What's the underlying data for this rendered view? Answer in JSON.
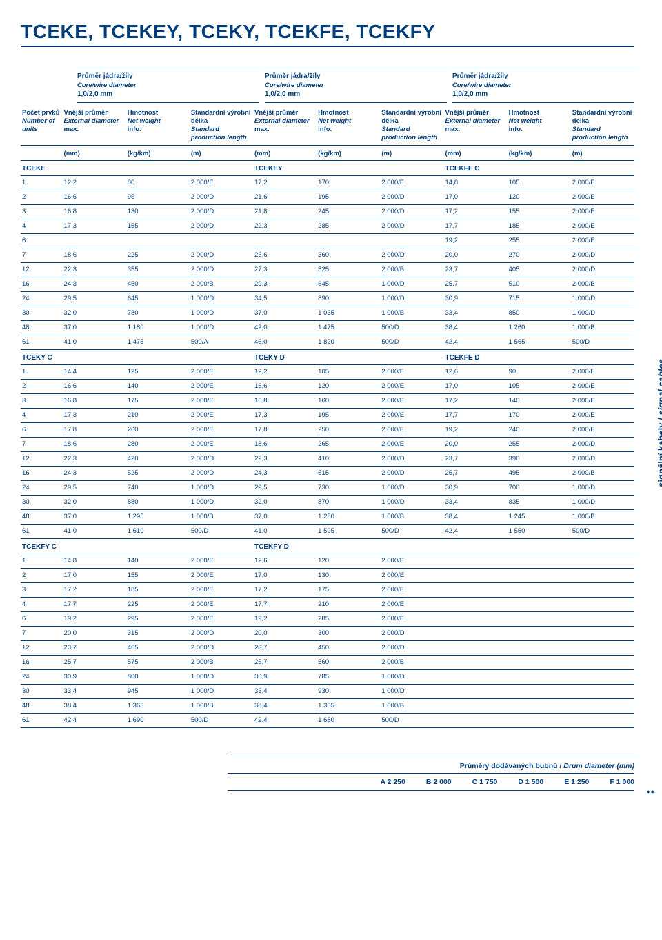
{
  "title": "TCEKE, TCEKEY, TCEKY, TCEKFE, TCEKFY",
  "side_label_cz": "signální kabely",
  "side_label_en": "signal cables",
  "top_header": {
    "line1": "Průměr jádra/žíly",
    "line2": "Core/wire diameter",
    "line3": "1,0/2,0 mm"
  },
  "col_headers": {
    "c0": {
      "cz": "Počet prvků",
      "en": "Number of units",
      "sub": ""
    },
    "c1": {
      "cz": "Vnější průměr",
      "en": "External diameter",
      "sub": "max."
    },
    "c2": {
      "cz": "Hmotnost",
      "en": "Net weight",
      "sub": "info."
    },
    "c3": {
      "cz": "Standardní výrobní délka",
      "en": "Standard production length",
      "sub": ""
    },
    "c4": {
      "cz": "Vnější průměr",
      "en": "External diameter",
      "sub": "max."
    },
    "c5": {
      "cz": "Hmotnost",
      "en": "Net weight",
      "sub": "info."
    },
    "c6": {
      "cz": "Standardní výrobní délka",
      "en": "Standard production length",
      "sub": ""
    },
    "c7": {
      "cz": "Vnější průměr",
      "en": "External diameter",
      "sub": "max."
    },
    "c8": {
      "cz": "Hmotnost",
      "en": "Net weight",
      "sub": "info."
    },
    "c9": {
      "cz": "Standardní výrobní délka",
      "en": "Standard production length",
      "sub": ""
    }
  },
  "units": [
    "(mm)",
    "(kg/km)",
    "(m)",
    "(mm)",
    "(kg/km)",
    "(m)",
    "(mm)",
    "(kg/km)",
    "(m)"
  ],
  "sections": [
    {
      "labels": [
        "TCEKE",
        "TCEKEY",
        "TCEKFE C"
      ],
      "rows": [
        [
          "1",
          "12,2",
          "80",
          "2 000/E",
          "17,2",
          "170",
          "2 000/E",
          "14,8",
          "105",
          "2 000/E"
        ],
        [
          "2",
          "16,6",
          "95",
          "2 000/D",
          "21,6",
          "195",
          "2 000/D",
          "17,0",
          "120",
          "2 000/E"
        ],
        [
          "3",
          "16,8",
          "130",
          "2 000/D",
          "21,8",
          "245",
          "2 000/D",
          "17,2",
          "155",
          "2 000/E"
        ],
        [
          "4",
          "17,3",
          "155",
          "2 000/D",
          "22,3",
          "285",
          "2 000/D",
          "17,7",
          "185",
          "2 000/E"
        ],
        [
          "6",
          "",
          "",
          "",
          "",
          "",
          "",
          "19,2",
          "255",
          "2 000/E"
        ],
        [
          "7",
          "18,6",
          "225",
          "2 000/D",
          "23,6",
          "360",
          "2 000/D",
          "20,0",
          "270",
          "2 000/D"
        ],
        [
          "12",
          "22,3",
          "355",
          "2 000/D",
          "27,3",
          "525",
          "2 000/B",
          "23,7",
          "405",
          "2 000/D"
        ],
        [
          "16",
          "24,3",
          "450",
          "2 000/B",
          "29,3",
          "645",
          "1 000/D",
          "25,7",
          "510",
          "2 000/B"
        ],
        [
          "24",
          "29,5",
          "645",
          "1 000/D",
          "34,5",
          "890",
          "1 000/D",
          "30,9",
          "715",
          "1 000/D"
        ],
        [
          "30",
          "32,0",
          "780",
          "1 000/D",
          "37,0",
          "1 035",
          "1 000/B",
          "33,4",
          "850",
          "1 000/D"
        ],
        [
          "48",
          "37,0",
          "1 180",
          "1 000/D",
          "42,0",
          "1 475",
          "500/D",
          "38,4",
          "1 260",
          "1 000/B"
        ],
        [
          "61",
          "41,0",
          "1 475",
          "500/A",
          "46,0",
          "1 820",
          "500/D",
          "42,4",
          "1 565",
          "500/D"
        ]
      ]
    },
    {
      "labels": [
        "TCEKY C",
        "TCEKY D",
        "TCEKFE D"
      ],
      "rows": [
        [
          "1",
          "14,4",
          "125",
          "2 000/F",
          "12,2",
          "105",
          "2 000/F",
          "12,6",
          "90",
          "2 000/E"
        ],
        [
          "2",
          "16,6",
          "140",
          "2 000/E",
          "16,6",
          "120",
          "2 000/E",
          "17,0",
          "105",
          "2 000/E"
        ],
        [
          "3",
          "16,8",
          "175",
          "2 000/E",
          "16,8",
          "160",
          "2 000/E",
          "17,2",
          "140",
          "2 000/E"
        ],
        [
          "4",
          "17,3",
          "210",
          "2 000/E",
          "17,3",
          "195",
          "2 000/E",
          "17,7",
          "170",
          "2 000/E"
        ],
        [
          "6",
          "17,8",
          "260",
          "2 000/E",
          "17,8",
          "250",
          "2 000/E",
          "19,2",
          "240",
          "2 000/E"
        ],
        [
          "7",
          "18,6",
          "280",
          "2 000/E",
          "18,6",
          "265",
          "2 000/E",
          "20,0",
          "255",
          "2 000/D"
        ],
        [
          "12",
          "22,3",
          "420",
          "2 000/D",
          "22,3",
          "410",
          "2 000/D",
          "23,7",
          "390",
          "2 000/D"
        ],
        [
          "16",
          "24,3",
          "525",
          "2 000/D",
          "24,3",
          "515",
          "2 000/D",
          "25,7",
          "495",
          "2 000/B"
        ],
        [
          "24",
          "29,5",
          "740",
          "1 000/D",
          "29,5",
          "730",
          "1 000/D",
          "30,9",
          "700",
          "1 000/D"
        ],
        [
          "30",
          "32,0",
          "880",
          "1 000/D",
          "32,0",
          "870",
          "1 000/D",
          "33,4",
          "835",
          "1 000/D"
        ],
        [
          "48",
          "37,0",
          "1 295",
          "1 000/B",
          "37,0",
          "1 280",
          "1 000/B",
          "38,4",
          "1 245",
          "1 000/B"
        ],
        [
          "61",
          "41,0",
          "1 610",
          "500/D",
          "41,0",
          "1 595",
          "500/D",
          "42,4",
          "1 550",
          "500/D"
        ]
      ]
    },
    {
      "labels": [
        "TCEKFY C",
        "TCEKFY D",
        ""
      ],
      "rows": [
        [
          "1",
          "14,8",
          "140",
          "2 000/E",
          "12,6",
          "120",
          "2 000/E",
          "",
          "",
          ""
        ],
        [
          "2",
          "17,0",
          "155",
          "2 000/E",
          "17,0",
          "130",
          "2 000/E",
          "",
          "",
          ""
        ],
        [
          "3",
          "17,2",
          "185",
          "2 000/E",
          "17,2",
          "175",
          "2 000/E",
          "",
          "",
          ""
        ],
        [
          "4",
          "17,7",
          "225",
          "2 000/E",
          "17,7",
          "210",
          "2 000/E",
          "",
          "",
          ""
        ],
        [
          "6",
          "19,2",
          "295",
          "2 000/E",
          "19,2",
          "285",
          "2 000/E",
          "",
          "",
          ""
        ],
        [
          "7",
          "20,0",
          "315",
          "2 000/D",
          "20,0",
          "300",
          "2 000/D",
          "",
          "",
          ""
        ],
        [
          "12",
          "23,7",
          "465",
          "2 000/D",
          "23,7",
          "450",
          "2 000/D",
          "",
          "",
          ""
        ],
        [
          "16",
          "25,7",
          "575",
          "2 000/B",
          "25,7",
          "560",
          "2 000/B",
          "",
          "",
          ""
        ],
        [
          "24",
          "30,9",
          "800",
          "1 000/D",
          "30,9",
          "785",
          "1 000/D",
          "",
          "",
          ""
        ],
        [
          "30",
          "33,4",
          "945",
          "1 000/D",
          "33,4",
          "930",
          "1 000/D",
          "",
          "",
          ""
        ],
        [
          "48",
          "38,4",
          "1 365",
          "1 000/B",
          "38,4",
          "1 355",
          "1 000/B",
          "",
          "",
          ""
        ],
        [
          "61",
          "42,4",
          "1 690",
          "500/D",
          "42,4",
          "1 680",
          "500/D",
          "",
          "",
          ""
        ]
      ]
    }
  ],
  "footer": {
    "title_cz": "Průměry dodávaných bubnů",
    "title_en": "Drum diameter (mm)",
    "items": [
      "A 2 250",
      "B 2 000",
      "C 1 750",
      "D 1 500",
      "E 1 250",
      "F 1 000"
    ]
  },
  "page_num": "●●"
}
